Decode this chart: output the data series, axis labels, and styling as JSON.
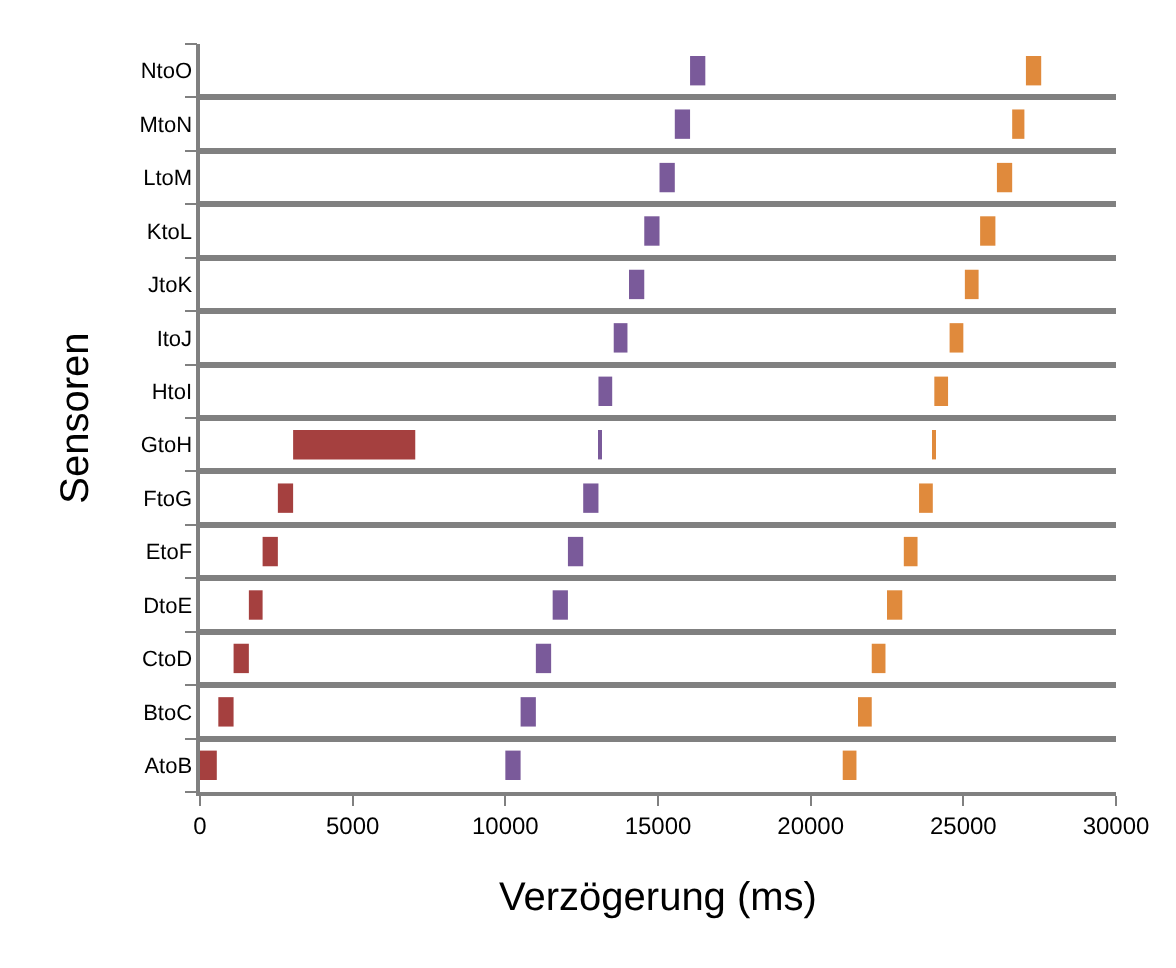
{
  "chart_data": {
    "type": "bar",
    "orientation": "horizontal",
    "xlabel": "Verzögerung (ms)",
    "ylabel": "Sensoren",
    "categories": [
      "NtoO",
      "MtoN",
      "LtoM",
      "KtoL",
      "JtoK",
      "ItoJ",
      "HtoI",
      "GtoH",
      "FtoG",
      "EtoF",
      "DtoE",
      "CtoD",
      "BtoC",
      "AtoB"
    ],
    "series": [
      {
        "color": "#a5403f",
        "base": [
          null,
          null,
          null,
          null,
          null,
          null,
          null,
          3050,
          2550,
          2050,
          1600,
          1100,
          600,
          0
        ],
        "values": [
          null,
          null,
          null,
          null,
          null,
          null,
          null,
          4000,
          500,
          500,
          450,
          500,
          500,
          550
        ]
      },
      {
        "color": "#7a5a9a",
        "base": [
          16050,
          15550,
          15050,
          14550,
          14050,
          13550,
          13050,
          13080,
          12550,
          12050,
          11550,
          11000,
          10500,
          10000
        ],
        "values": [
          500,
          500,
          500,
          500,
          500,
          450,
          450,
          50,
          500,
          500,
          500,
          500,
          500,
          500
        ]
      },
      {
        "color": "#e08a3c",
        "base": [
          27050,
          26600,
          26100,
          25550,
          25050,
          24550,
          24050,
          24030,
          23550,
          23050,
          22500,
          22000,
          21550,
          21050
        ],
        "values": [
          500,
          400,
          500,
          500,
          450,
          450,
          450,
          30,
          450,
          450,
          500,
          450,
          450,
          450
        ]
      }
    ],
    "xlim": [
      0,
      30000
    ],
    "xticks": [
      0,
      5000,
      10000,
      15000,
      20000,
      25000,
      30000
    ],
    "grid": "y"
  }
}
